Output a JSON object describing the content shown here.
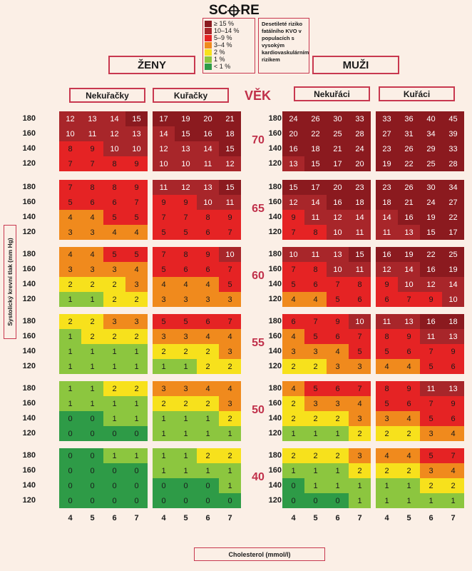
{
  "title_pre": "SC",
  "title_post": "RE",
  "legend": {
    "items": [
      {
        "label": "≥ 15 %",
        "color": "#8b1a1f"
      },
      {
        "label": "10–14 %",
        "color": "#a8262a"
      },
      {
        "label": "5–9 %",
        "color": "#e52324"
      },
      {
        "label": "3–4 %",
        "color": "#f08a1d"
      },
      {
        "label": "2 %",
        "color": "#f7e11c"
      },
      {
        "label": "1 %",
        "color": "#8cc63f"
      },
      {
        "label": "< 1 %",
        "color": "#2e9b47"
      }
    ],
    "note": "Desetileté riziko fatálního KVO v populacích s vysokým kardiovaskulárním rizikem"
  },
  "labels": {
    "women": "ŽENY",
    "men": "MUŽI",
    "age": "VĚK",
    "women_nonsmoker": "Nekuřačky",
    "women_smoker": "Kuřačky",
    "men_nonsmoker": "Nekuřáci",
    "men_smoker": "Kuřáci",
    "ylabel": "Systolický krevní tlak (mm Hg)",
    "xlabel": "Cholesterol (mmol/l)"
  },
  "chart_data": {
    "type": "heatmap",
    "xlabel": "Cholesterol (mmol/l)",
    "ylabel": "Systolický krevní tlak (mm Hg)",
    "cholesterol": [
      4,
      5,
      6,
      7
    ],
    "sbp": [
      180,
      160,
      140,
      120
    ],
    "ages": [
      70,
      65,
      60,
      55,
      50,
      40
    ],
    "color_levels": {
      "lt1": "#2e9b47",
      "p1": "#8cc63f",
      "p2": "#f7e11c",
      "p3_4": "#f08a1d",
      "p5_9": "#e52324",
      "p10_14": "#a8262a",
      "ge15": "#8b1a1f"
    },
    "panels": [
      {
        "name": "Ženy – Nekuřačky",
        "grids": [
          [
            [
              12,
              13,
              14,
              15
            ],
            [
              10,
              11,
              12,
              13
            ],
            [
              8,
              9,
              10,
              10
            ],
            [
              7,
              7,
              8,
              9
            ]
          ],
          [
            [
              7,
              8,
              8,
              9
            ],
            [
              5,
              6,
              6,
              7
            ],
            [
              4,
              4,
              5,
              5
            ],
            [
              3,
              3,
              4,
              4
            ]
          ],
          [
            [
              4,
              4,
              5,
              5
            ],
            [
              3,
              3,
              3,
              4
            ],
            [
              2,
              2,
              2,
              3
            ],
            [
              1,
              1,
              2,
              2
            ]
          ],
          [
            [
              2,
              2,
              3,
              3
            ],
            [
              1,
              2,
              2,
              2
            ],
            [
              1,
              1,
              1,
              1
            ],
            [
              1,
              1,
              1,
              1
            ]
          ],
          [
            [
              1,
              1,
              2,
              2
            ],
            [
              1,
              1,
              1,
              1
            ],
            [
              0,
              0,
              1,
              1
            ],
            [
              0,
              0,
              0,
              0
            ]
          ],
          [
            [
              0,
              0,
              1,
              1
            ],
            [
              0,
              0,
              0,
              0
            ],
            [
              0,
              0,
              0,
              0
            ],
            [
              0,
              0,
              0,
              0
            ]
          ]
        ]
      },
      {
        "name": "Ženy – Kuřačky",
        "grids": [
          [
            [
              17,
              19,
              20,
              21
            ],
            [
              14,
              15,
              16,
              18
            ],
            [
              12,
              13,
              14,
              15
            ],
            [
              10,
              10,
              11,
              12
            ]
          ],
          [
            [
              11,
              12,
              13,
              15
            ],
            [
              9,
              9,
              10,
              11
            ],
            [
              7,
              7,
              8,
              9
            ],
            [
              5,
              5,
              6,
              7
            ]
          ],
          [
            [
              7,
              8,
              9,
              10
            ],
            [
              5,
              6,
              6,
              7
            ],
            [
              4,
              4,
              4,
              5
            ],
            [
              3,
              3,
              3,
              3
            ]
          ],
          [
            [
              5,
              5,
              6,
              7
            ],
            [
              3,
              3,
              4,
              4
            ],
            [
              2,
              2,
              2,
              3
            ],
            [
              1,
              1,
              2,
              2
            ]
          ],
          [
            [
              3,
              3,
              4,
              4
            ],
            [
              2,
              2,
              2,
              3
            ],
            [
              1,
              1,
              1,
              2
            ],
            [
              1,
              1,
              1,
              1
            ]
          ],
          [
            [
              1,
              1,
              2,
              2
            ],
            [
              1,
              1,
              1,
              1
            ],
            [
              0,
              0,
              0,
              1
            ],
            [
              0,
              0,
              0,
              0
            ]
          ]
        ]
      },
      {
        "name": "Muži – Nekuřáci",
        "grids": [
          [
            [
              24,
              26,
              30,
              33
            ],
            [
              20,
              22,
              25,
              28
            ],
            [
              16,
              18,
              21,
              24
            ],
            [
              13,
              15,
              17,
              20
            ]
          ],
          [
            [
              15,
              17,
              20,
              23
            ],
            [
              12,
              14,
              16,
              18
            ],
            [
              9,
              11,
              12,
              14
            ],
            [
              7,
              8,
              10,
              11
            ]
          ],
          [
            [
              10,
              11,
              13,
              15
            ],
            [
              7,
              8,
              10,
              11
            ],
            [
              5,
              6,
              7,
              8
            ],
            [
              4,
              4,
              5,
              6
            ]
          ],
          [
            [
              6,
              7,
              9,
              10
            ],
            [
              4,
              5,
              6,
              7
            ],
            [
              3,
              3,
              4,
              5
            ],
            [
              2,
              2,
              3,
              3
            ]
          ],
          [
            [
              4,
              5,
              6,
              7
            ],
            [
              2,
              3,
              3,
              4
            ],
            [
              2,
              2,
              2,
              3
            ],
            [
              1,
              1,
              1,
              2
            ]
          ],
          [
            [
              2,
              2,
              2,
              3
            ],
            [
              1,
              1,
              1,
              2
            ],
            [
              0,
              1,
              1,
              1
            ],
            [
              0,
              0,
              0,
              1
            ]
          ]
        ]
      },
      {
        "name": "Muži – Kuřáci",
        "grids": [
          [
            [
              33,
              36,
              40,
              45
            ],
            [
              27,
              31,
              34,
              39
            ],
            [
              23,
              26,
              29,
              33
            ],
            [
              19,
              22,
              25,
              28
            ]
          ],
          [
            [
              23,
              26,
              30,
              34
            ],
            [
              18,
              21,
              24,
              27
            ],
            [
              14,
              16,
              19,
              22
            ],
            [
              11,
              13,
              15,
              17
            ]
          ],
          [
            [
              16,
              19,
              22,
              25
            ],
            [
              12,
              14,
              16,
              19
            ],
            [
              9,
              10,
              12,
              14
            ],
            [
              6,
              7,
              9,
              10
            ]
          ],
          [
            [
              11,
              13,
              16,
              18
            ],
            [
              8,
              9,
              11,
              13
            ],
            [
              5,
              6,
              7,
              9
            ],
            [
              4,
              4,
              5,
              6
            ]
          ],
          [
            [
              8,
              9,
              11,
              13
            ],
            [
              5,
              6,
              7,
              9
            ],
            [
              3,
              4,
              5,
              6
            ],
            [
              2,
              2,
              3,
              4
            ]
          ],
          [
            [
              4,
              4,
              5,
              7
            ],
            [
              2,
              2,
              3,
              4
            ],
            [
              1,
              1,
              2,
              2
            ],
            [
              1,
              1,
              1,
              1
            ]
          ]
        ]
      }
    ]
  }
}
